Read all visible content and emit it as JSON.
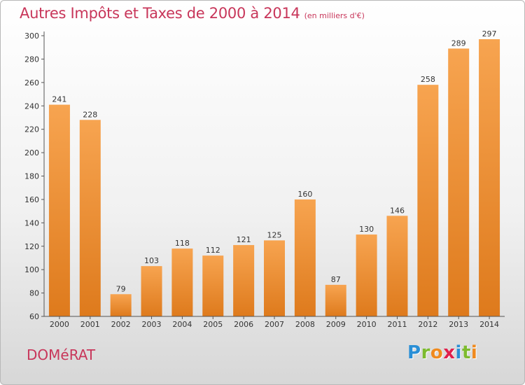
{
  "header": {
    "title": "Autres Impôts et Taxes de 2000 à 2014",
    "subtitle": "(en milliers d'€)"
  },
  "footer": {
    "commune": "DOMéRAT"
  },
  "logo": {
    "letters": [
      "P",
      "r",
      "o",
      "x",
      "i",
      "t",
      "i"
    ],
    "colors": [
      "#2a8fd6",
      "#7dbb2f",
      "#f08a1e",
      "#e0204c",
      "#2a8fd6",
      "#7dbb2f",
      "#f08a1e"
    ]
  },
  "colors": {
    "bar_light": "#f7a450",
    "bar_dark": "#de7a1c",
    "axis": "#555555",
    "grid": "#dddddd"
  },
  "chart_data": {
    "type": "bar",
    "title": "Autres Impôts et Taxes de 2000 à 2014",
    "xlabel": "",
    "ylabel": "",
    "categories": [
      "2000",
      "2001",
      "2002",
      "2003",
      "2004",
      "2005",
      "2006",
      "2007",
      "2008",
      "2009",
      "2010",
      "2011",
      "2012",
      "2013",
      "2014"
    ],
    "values": [
      241,
      228,
      79,
      103,
      118,
      112,
      121,
      125,
      160,
      87,
      130,
      146,
      258,
      289,
      297
    ],
    "ylim": [
      60,
      300
    ],
    "yticks": [
      60,
      80,
      100,
      120,
      140,
      160,
      180,
      200,
      220,
      240,
      260,
      280,
      300
    ],
    "grid": false,
    "data_labels": true
  }
}
